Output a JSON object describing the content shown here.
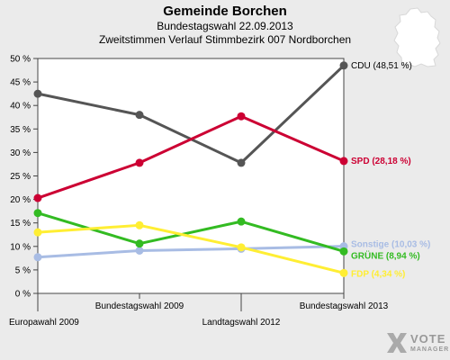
{
  "header": {
    "title": "Gemeinde Borchen",
    "subtitle": "Bundestagswahl 22.09.2013",
    "subtitle2": "Zweitstimmen Verlauf Stimmbezirk 007 Nordborchen"
  },
  "logo": {
    "line1": "VOTE",
    "line2": "MANAGER"
  },
  "chart_data": {
    "type": "line",
    "title": "Gemeinde Borchen",
    "categories": [
      "Europawahl 2009",
      "Bundestagswahl 2009",
      "Landtagswahl 2012",
      "Bundestagswahl 2013"
    ],
    "yticks": [
      "0 %",
      "5 %",
      "10 %",
      "15 %",
      "20 %",
      "25 %",
      "30 %",
      "35 %",
      "40 %",
      "45 %",
      "50 %"
    ],
    "ylim": [
      0,
      50
    ],
    "grid": false,
    "series": [
      {
        "name": "CDU",
        "label": "CDU (48,51 %)",
        "color": "#555555",
        "values": [
          42.5,
          38.0,
          27.8,
          48.51
        ]
      },
      {
        "name": "SPD",
        "label": "SPD (28,18 %)",
        "color": "#cc0033",
        "values": [
          20.3,
          27.8,
          37.7,
          28.18
        ]
      },
      {
        "name": "Sonstige",
        "label": "Sonstige (10,03 %)",
        "color": "#a8bce4",
        "values": [
          7.7,
          9.1,
          9.5,
          10.03
        ]
      },
      {
        "name": "GRÜNE",
        "label": "GRÜNE (8,94 %)",
        "color": "#33bb22",
        "values": [
          17.1,
          10.6,
          15.3,
          8.94
        ]
      },
      {
        "name": "FDP",
        "label": "FDP (4,34 %)",
        "color": "#ffee33",
        "values": [
          13.0,
          14.5,
          9.8,
          4.34
        ]
      }
    ]
  }
}
